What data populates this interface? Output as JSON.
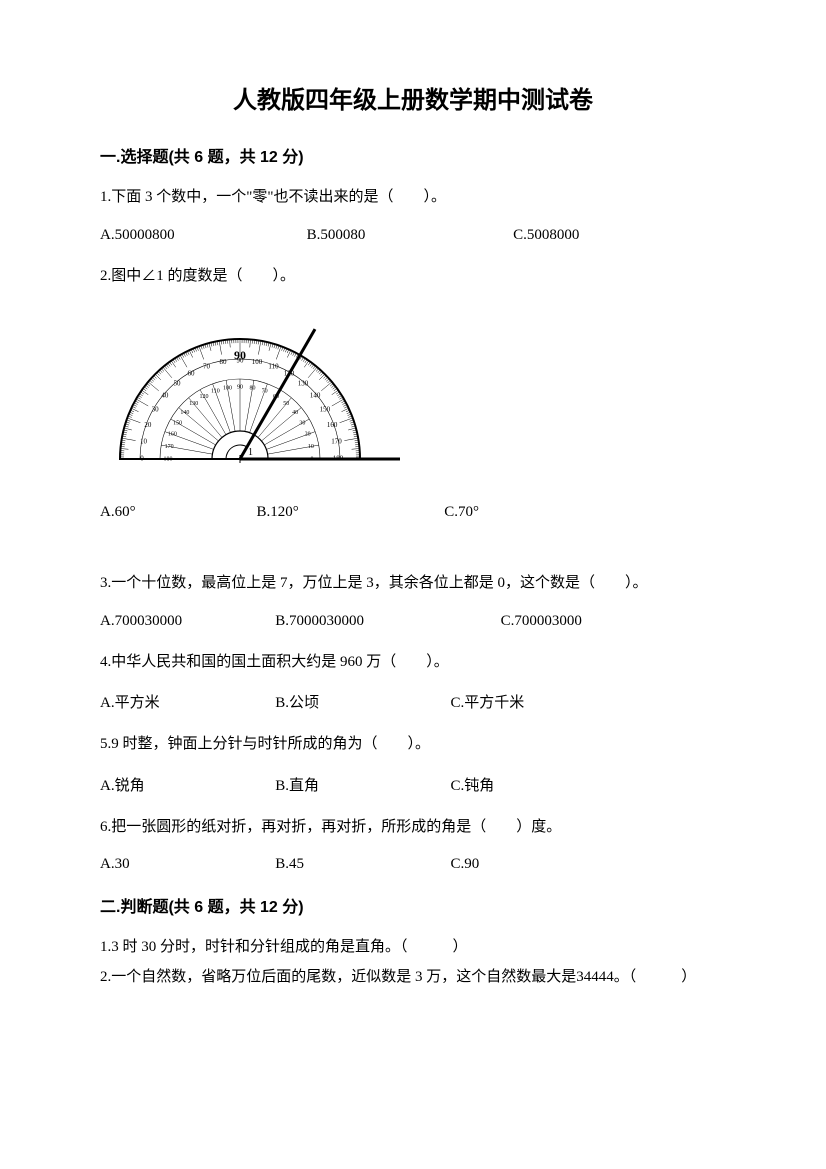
{
  "title": "人教版四年级上册数学期中测试卷",
  "section1": {
    "header": "一.选择题(共 6 题，共 12 分)",
    "q1": {
      "text": "1.下面 3 个数中，一个\"零\"也不读出来的是（　　）。",
      "a": "A.50000800",
      "b": "B.500080",
      "c": "C.5008000"
    },
    "q2": {
      "text": "2.图中∠1 的度数是（　　）。",
      "a": "A.60°",
      "b": "B.120°",
      "c": "C.70°",
      "protractor": {
        "center_label": "90",
        "angle_line_deg": 120,
        "baseline_extend": 30,
        "color": "#000000"
      }
    },
    "q3": {
      "text": "3.一个十位数，最高位上是 7，万位上是 3，其余各位上都是 0，这个数是（　　）。",
      "a": "A.700030000",
      "b": "B.7000030000",
      "c": "C.700003000"
    },
    "q4": {
      "text": "4.中华人民共和国的国土面积大约是 960 万（　　）。",
      "a": "A.平方米",
      "b": "B.公顷",
      "c": "C.平方千米"
    },
    "q5": {
      "text": "5.9 时整，钟面上分针与时针所成的角为（　　）。",
      "a": "A.锐角",
      "b": "B.直角",
      "c": "C.钝角"
    },
    "q6": {
      "text": "6.把一张圆形的纸对折，再对折，再对折，所形成的角是（　　）度。",
      "a": "A.30",
      "b": "B.45",
      "c": "C.90"
    }
  },
  "section2": {
    "header": "二.判断题(共 6 题，共 12 分)",
    "q1": "1.3 时 30 分时，时针和分针组成的角是直角。（　　　）",
    "q2": "2.一个自然数，省略万位后面的尾数，近似数是 3 万，这个自然数最大是34444。（　　　）"
  }
}
